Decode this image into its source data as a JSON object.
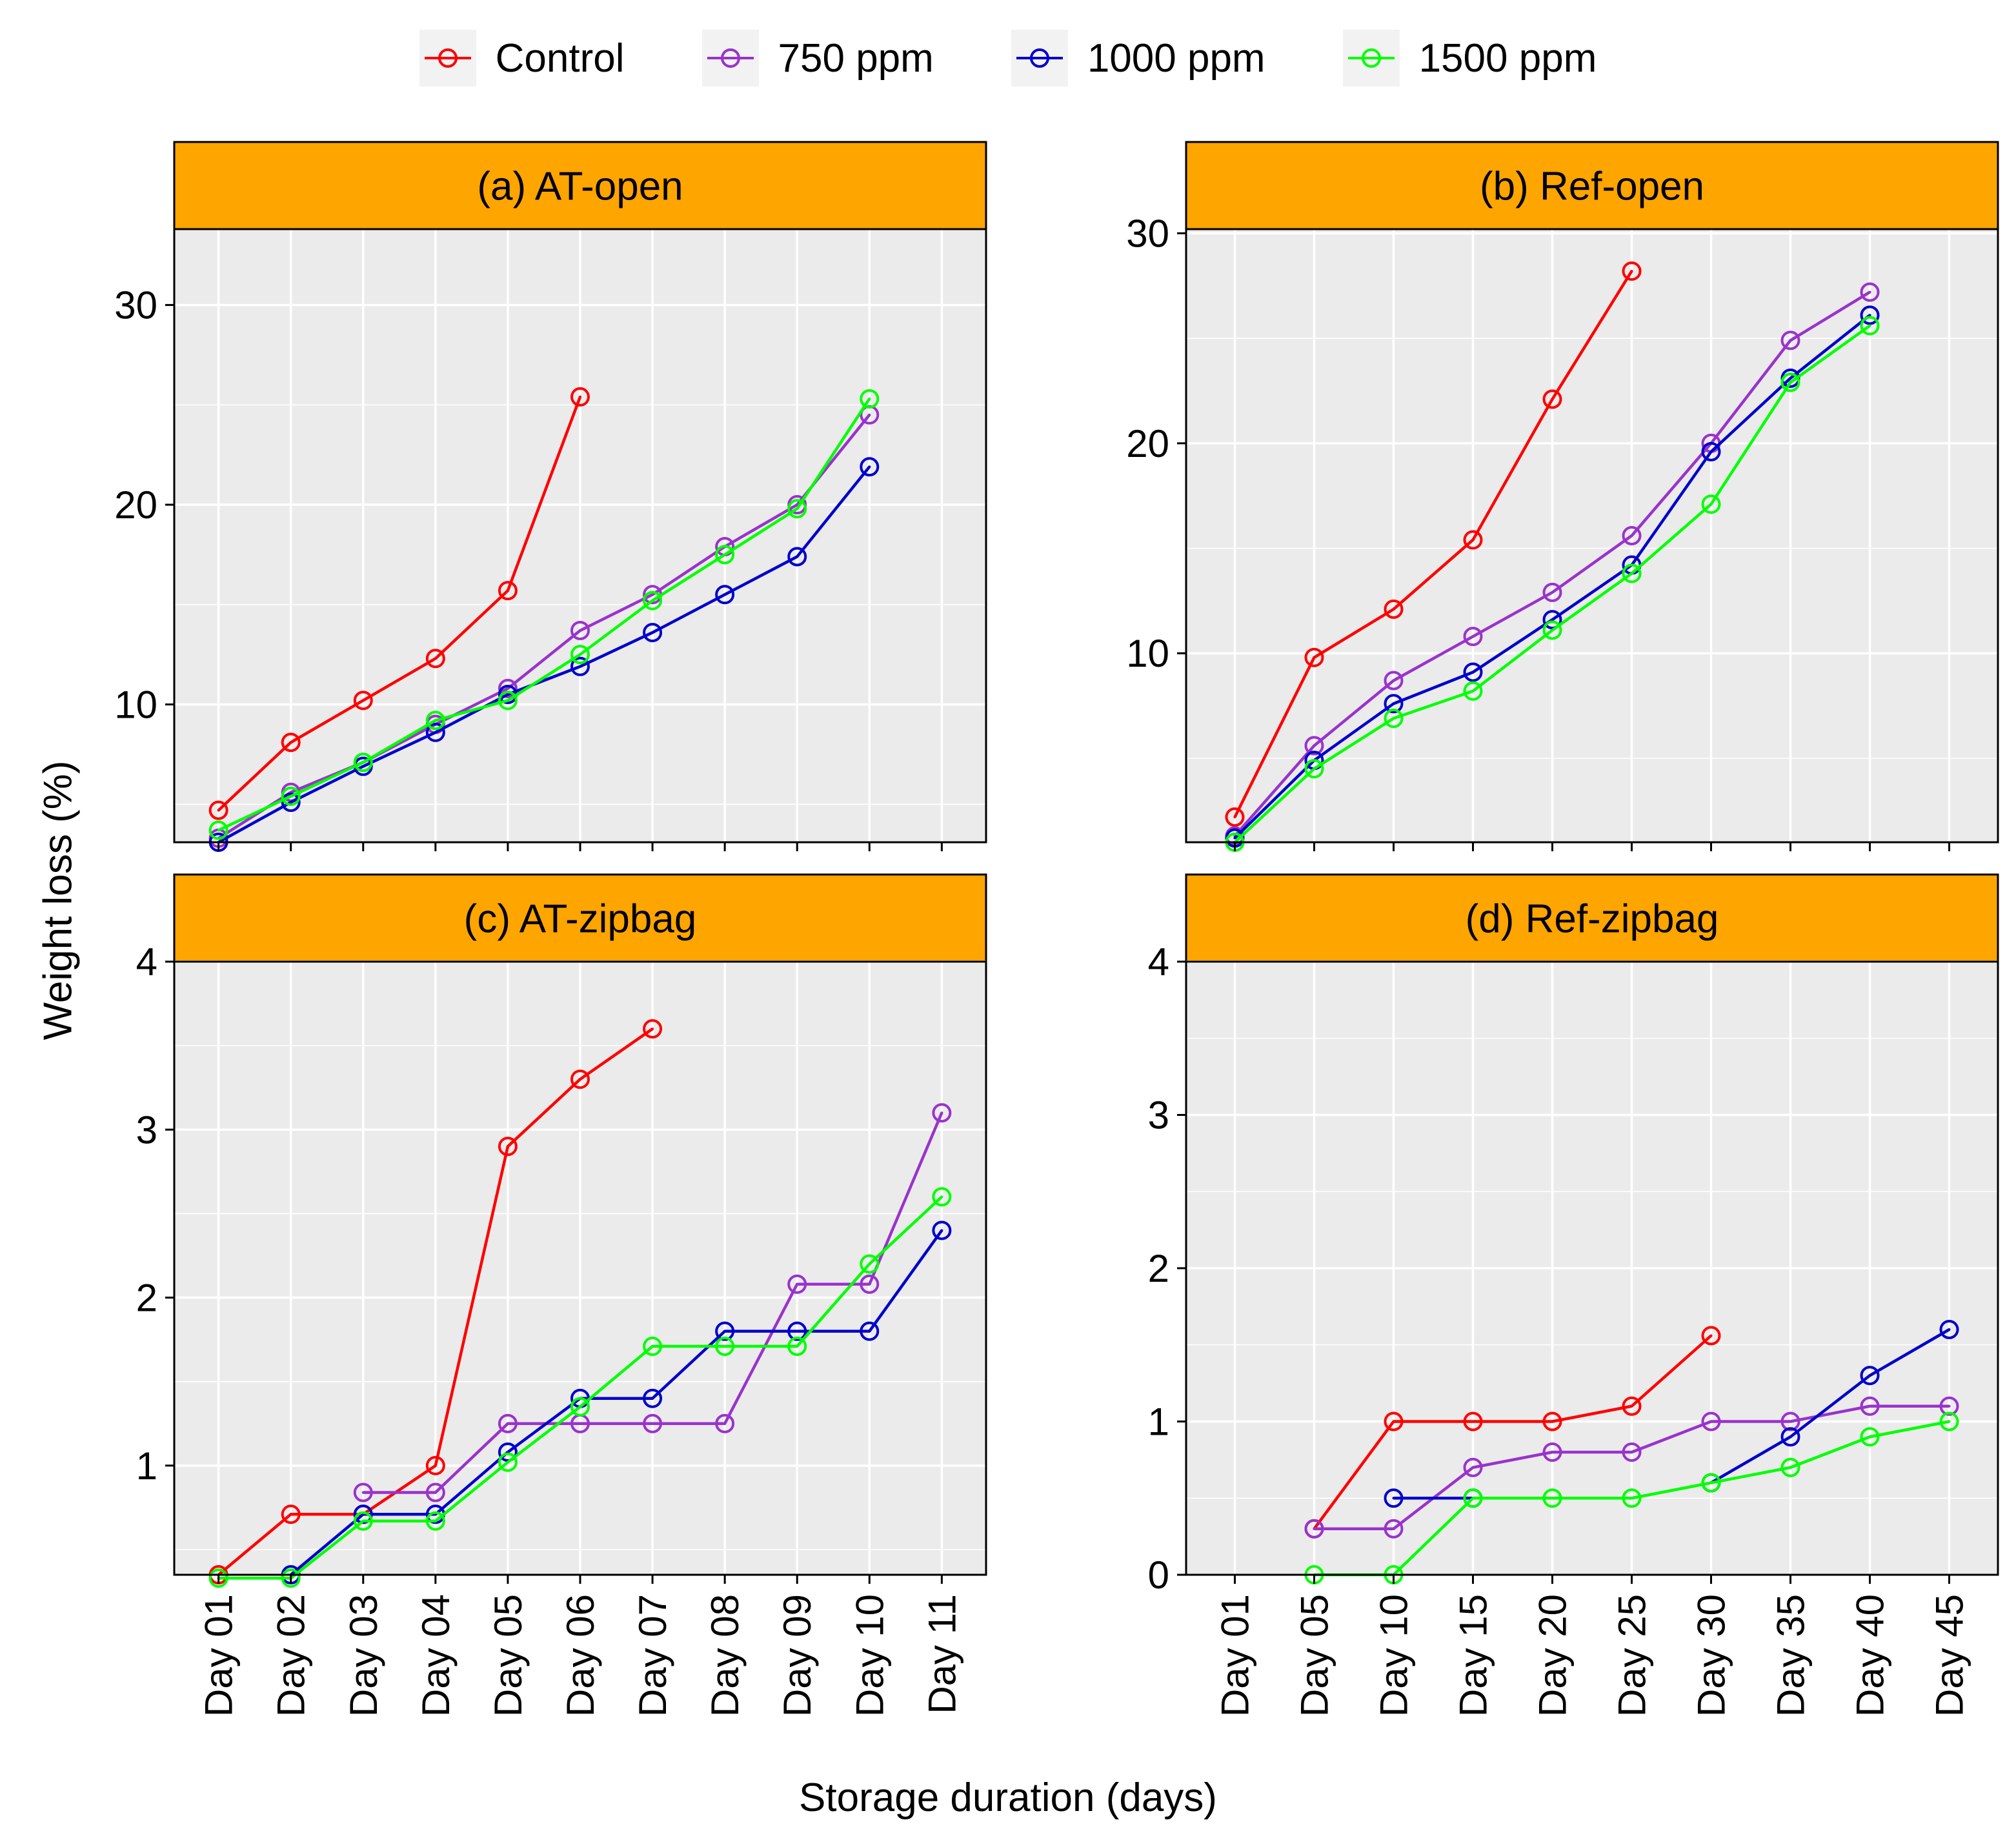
{
  "colors": {
    "Control": "#ff0000",
    "750 ppm": "#9933cc",
    "1000 ppm": "#0000cc",
    "1500 ppm": "#00ff00",
    "strip": "#ffa500",
    "panel_bg": "#ebebeb",
    "grid": "#ffffff"
  },
  "legend": {
    "items": [
      {
        "label": "Control",
        "color": "#ff0000"
      },
      {
        "label": "750 ppm",
        "color": "#9933cc"
      },
      {
        "label": "1000 ppm",
        "color": "#0000cc"
      },
      {
        "label": "1500 ppm",
        "color": "#00ff00"
      }
    ],
    "placement": "top"
  },
  "axes": {
    "xlabel": "Storage duration (days)",
    "ylabel": "Weight loss (%)"
  },
  "chart_data": [
    {
      "type": "line",
      "title": "(a) AT-open",
      "categories": [
        "Day 01",
        "Day 02",
        "Day 03",
        "Day 04",
        "Day 05",
        "Day 06",
        "Day 07",
        "Day 08",
        "Day 09",
        "Day 10",
        "Day 11"
      ],
      "ylim": [
        3.1,
        33.8
      ],
      "yticks": [
        10,
        20,
        30
      ],
      "grid": true,
      "series": [
        {
          "name": "Control",
          "values": [
            4.7,
            8.1,
            10.2,
            12.3,
            15.7,
            25.4,
            null,
            null,
            null,
            null,
            null
          ]
        },
        {
          "name": "750 ppm",
          "values": [
            3.3,
            5.6,
            7.1,
            9.0,
            10.8,
            13.7,
            15.5,
            17.9,
            20.0,
            24.5,
            null
          ]
        },
        {
          "name": "1000 ppm",
          "values": [
            3.1,
            5.1,
            6.9,
            8.6,
            10.5,
            11.9,
            13.6,
            15.5,
            17.4,
            21.9,
            null
          ]
        },
        {
          "name": "1500 ppm",
          "values": [
            3.7,
            5.4,
            7.1,
            9.2,
            10.2,
            12.5,
            15.2,
            17.5,
            19.8,
            25.3,
            null
          ]
        }
      ]
    },
    {
      "type": "line",
      "title": "(b) Ref-open",
      "categories": [
        "Day 01",
        "Day 05",
        "Day 10",
        "Day 15",
        "Day 20",
        "Day 25",
        "Day 30",
        "Day 35",
        "Day 40",
        "Day 45"
      ],
      "ylim": [
        1.0,
        30.2
      ],
      "yticks": [
        10,
        20,
        30
      ],
      "grid": true,
      "series": [
        {
          "name": "Control",
          "values": [
            2.2,
            9.8,
            12.1,
            15.4,
            22.1,
            28.2,
            null,
            null,
            null,
            null
          ]
        },
        {
          "name": "750 ppm",
          "values": [
            1.3,
            5.6,
            8.7,
            10.8,
            12.9,
            15.6,
            20.0,
            24.9,
            27.2,
            null
          ]
        },
        {
          "name": "1000 ppm",
          "values": [
            1.2,
            4.9,
            7.6,
            9.1,
            11.6,
            14.2,
            19.6,
            23.1,
            26.1,
            null
          ]
        },
        {
          "name": "1500 ppm",
          "values": [
            1.0,
            4.5,
            6.9,
            8.2,
            11.1,
            13.8,
            17.1,
            22.9,
            25.6,
            null
          ]
        }
      ]
    },
    {
      "type": "line",
      "title": "(c) AT-zipbag",
      "categories": [
        "Day 01",
        "Day 02",
        "Day 03",
        "Day 04",
        "Day 05",
        "Day 06",
        "Day 07",
        "Day 08",
        "Day 09",
        "Day 10",
        "Day 11"
      ],
      "ylim": [
        0.35,
        4.0
      ],
      "yticks": [
        1,
        2,
        3,
        4
      ],
      "grid": true,
      "series": [
        {
          "name": "Control",
          "values": [
            0.35,
            0.71,
            0.71,
            1.0,
            2.9,
            3.3,
            3.6,
            null,
            null,
            null,
            null
          ]
        },
        {
          "name": "750 ppm",
          "values": [
            null,
            null,
            0.84,
            0.84,
            1.25,
            1.25,
            1.25,
            1.25,
            2.08,
            2.08,
            3.1
          ]
        },
        {
          "name": "1000 ppm",
          "values": [
            null,
            0.35,
            0.71,
            0.71,
            1.08,
            1.4,
            1.4,
            1.8,
            1.8,
            1.8,
            2.4
          ]
        },
        {
          "name": "1500 ppm",
          "values": [
            0.33,
            0.33,
            0.67,
            0.67,
            1.02,
            1.35,
            1.71,
            1.71,
            1.71,
            2.2,
            2.6
          ]
        }
      ]
    },
    {
      "type": "line",
      "title": "(d) Ref-zipbag",
      "categories": [
        "Day 01",
        "Day 05",
        "Day 10",
        "Day 15",
        "Day 20",
        "Day 25",
        "Day 30",
        "Day 35",
        "Day 40",
        "Day 45"
      ],
      "ylim": [
        0,
        4.0
      ],
      "yticks": [
        0,
        1,
        2,
        3,
        4
      ],
      "grid": true,
      "series": [
        {
          "name": "Control",
          "values": [
            null,
            0.3,
            1.0,
            1.0,
            1.0,
            1.1,
            1.56,
            null,
            null,
            null
          ]
        },
        {
          "name": "750 ppm",
          "values": [
            null,
            0.3,
            0.3,
            0.7,
            0.8,
            0.8,
            1.0,
            1.0,
            1.1,
            1.1
          ]
        },
        {
          "name": "1000 ppm",
          "values": [
            null,
            null,
            0.5,
            0.5,
            null,
            null,
            0.6,
            0.9,
            1.3,
            1.6
          ]
        },
        {
          "name": "1500 ppm",
          "values": [
            null,
            0.0,
            0.0,
            0.5,
            0.5,
            0.5,
            0.6,
            0.7,
            0.9,
            1.0
          ]
        }
      ]
    }
  ]
}
